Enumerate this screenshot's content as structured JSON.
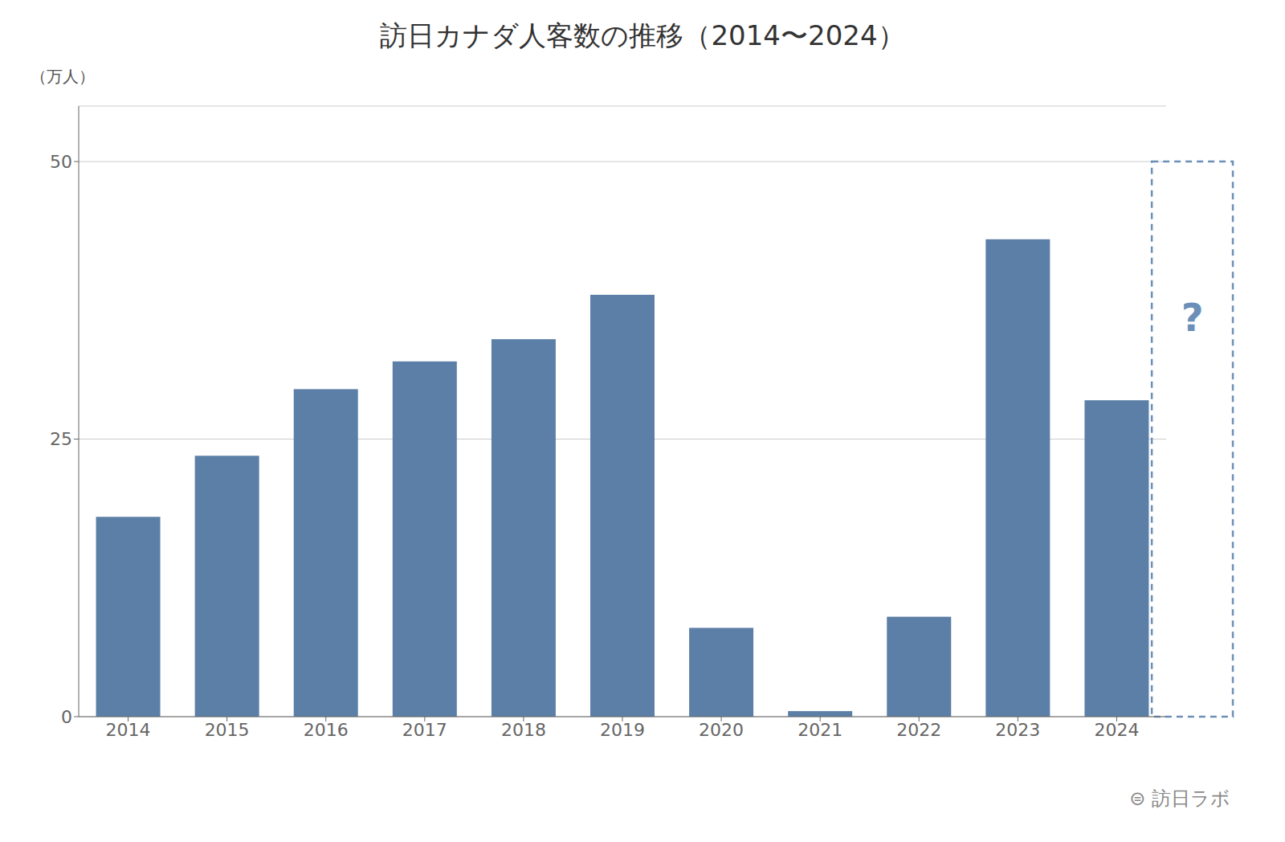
{
  "chart_data": {
    "type": "bar",
    "title": "訪日カナダ人客数の推移（2014〜2024）",
    "y_label": "（万人）",
    "categories": [
      "2014",
      "2015",
      "2016",
      "2017",
      "2018",
      "2019",
      "2020",
      "2021",
      "2022",
      "2023",
      "2024"
    ],
    "values": [
      18.0,
      23.5,
      29.5,
      32.0,
      34.0,
      38.0,
      8.0,
      0.5,
      9.0,
      43.0,
      28.5
    ],
    "color": "#5b7fa6",
    "ylim": [
      0,
      55
    ],
    "yticks": [
      0,
      25,
      50
    ],
    "grid": true,
    "annotations": [
      {
        "text": "?",
        "color": "#6b8fb8"
      },
      {
        "text": "⊜ 訪日ラボ"
      }
    ]
  }
}
